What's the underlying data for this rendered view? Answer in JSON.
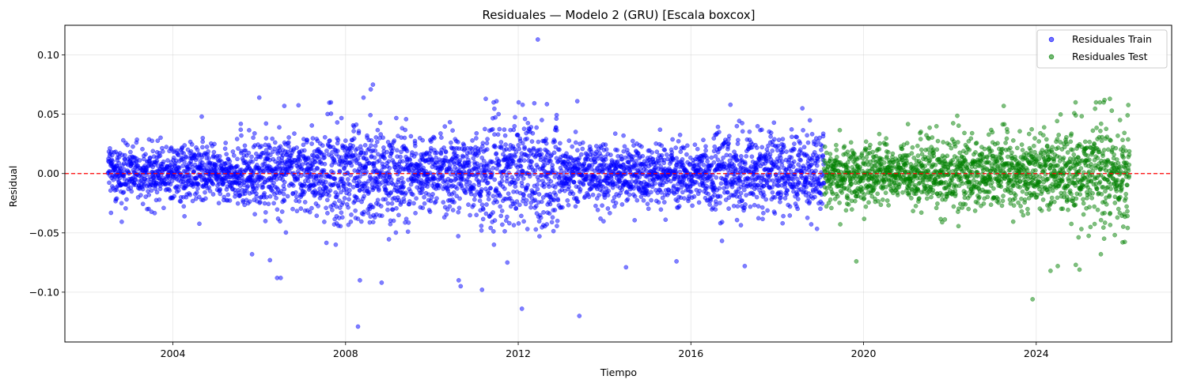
{
  "chart_data": {
    "type": "scatter",
    "title": "Residuales — Modelo 2 (GRU) [Escala boxcox]",
    "xlabel": "Tiempo",
    "ylabel": "Residual",
    "xlim": [
      "2001-07-01",
      "2027-02-20"
    ],
    "ylim": [
      -0.142,
      0.125
    ],
    "x_ticks": [
      "2004",
      "2008",
      "2012",
      "2016",
      "2020",
      "2024"
    ],
    "y_ticks": [
      -0.1,
      -0.05,
      0.0,
      0.05,
      0.1
    ],
    "y_tick_labels": [
      "−0.10",
      "−0.05",
      "0.00",
      "0.05",
      "0.10"
    ],
    "grid": true,
    "legend_position": "top-right",
    "reference_line": {
      "y": 0,
      "color": "#ff0000",
      "style": "dashed"
    },
    "colors": {
      "train": "#0000ff",
      "test": "#008000",
      "reference": "#ff0000"
    },
    "series": [
      {
        "name": "Residuales Train",
        "color": "#0000ff",
        "x_range": [
          "2002-07-01",
          "2019-01-31"
        ],
        "band_sd": [
          {
            "from": "2002-07-01",
            "to": "2005-06-30",
            "sd": 0.011
          },
          {
            "from": "2005-07-01",
            "to": "2007-06-30",
            "sd": 0.015
          },
          {
            "from": "2007-07-01",
            "to": "2009-06-30",
            "sd": 0.02
          },
          {
            "from": "2009-07-01",
            "to": "2010-12-31",
            "sd": 0.014
          },
          {
            "from": "2011-01-01",
            "to": "2012-12-31",
            "sd": 0.022
          },
          {
            "from": "2013-01-01",
            "to": "2016-06-30",
            "sd": 0.012
          },
          {
            "from": "2016-07-01",
            "to": "2019-01-31",
            "sd": 0.016
          }
        ],
        "outliers": [
          {
            "x": "2012-06-15",
            "y": 0.113
          },
          {
            "x": "2008-08-20",
            "y": 0.075
          },
          {
            "x": "2008-08-01",
            "y": 0.071
          },
          {
            "x": "2008-06-01",
            "y": 0.064
          },
          {
            "x": "2006-01-01",
            "y": 0.064
          },
          {
            "x": "2011-04-01",
            "y": 0.063
          },
          {
            "x": "2013-05-15",
            "y": 0.061
          },
          {
            "x": "2011-07-01",
            "y": 0.061
          },
          {
            "x": "2006-08-01",
            "y": 0.057
          },
          {
            "x": "2016-12-01",
            "y": 0.058
          },
          {
            "x": "2018-08-01",
            "y": 0.055
          },
          {
            "x": "2004-09-01",
            "y": 0.048
          },
          {
            "x": "2008-04-15",
            "y": -0.129
          },
          {
            "x": "2013-06-01",
            "y": -0.12
          },
          {
            "x": "2012-02-01",
            "y": -0.114
          },
          {
            "x": "2011-03-01",
            "y": -0.098
          },
          {
            "x": "2010-09-01",
            "y": -0.095
          },
          {
            "x": "2010-08-15",
            "y": -0.09
          },
          {
            "x": "2008-11-01",
            "y": -0.092
          },
          {
            "x": "2008-05-01",
            "y": -0.09
          },
          {
            "x": "2006-07-01",
            "y": -0.088
          },
          {
            "x": "2006-06-01",
            "y": -0.088
          },
          {
            "x": "2014-07-01",
            "y": -0.079
          },
          {
            "x": "2017-04-01",
            "y": -0.078
          },
          {
            "x": "2015-09-01",
            "y": -0.074
          },
          {
            "x": "2006-04-01",
            "y": -0.073
          },
          {
            "x": "2005-11-01",
            "y": -0.068
          },
          {
            "x": "2011-10-01",
            "y": -0.075
          }
        ]
      },
      {
        "name": "Residuales Test",
        "color": "#008000",
        "x_range": [
          "2019-02-01",
          "2026-02-28"
        ],
        "band_sd": [
          {
            "from": "2019-02-01",
            "to": "2021-06-30",
            "sd": 0.012
          },
          {
            "from": "2021-07-01",
            "to": "2024-06-30",
            "sd": 0.015
          },
          {
            "from": "2024-07-01",
            "to": "2026-02-28",
            "sd": 0.02
          }
        ],
        "outliers": [
          {
            "x": "2025-09-15",
            "y": 0.063
          },
          {
            "x": "2025-08-01",
            "y": 0.062
          },
          {
            "x": "2023-04-01",
            "y": 0.057
          },
          {
            "x": "2025-10-01",
            "y": 0.053
          },
          {
            "x": "2024-12-01",
            "y": 0.049
          },
          {
            "x": "2023-12-01",
            "y": -0.106
          },
          {
            "x": "2024-05-01",
            "y": -0.082
          },
          {
            "x": "2025-01-01",
            "y": -0.081
          },
          {
            "x": "2024-07-01",
            "y": -0.078
          },
          {
            "x": "2024-12-01",
            "y": -0.077
          },
          {
            "x": "2019-11-01",
            "y": -0.074
          },
          {
            "x": "2025-07-01",
            "y": -0.068
          },
          {
            "x": "2026-01-01",
            "y": -0.058
          }
        ]
      }
    ]
  }
}
